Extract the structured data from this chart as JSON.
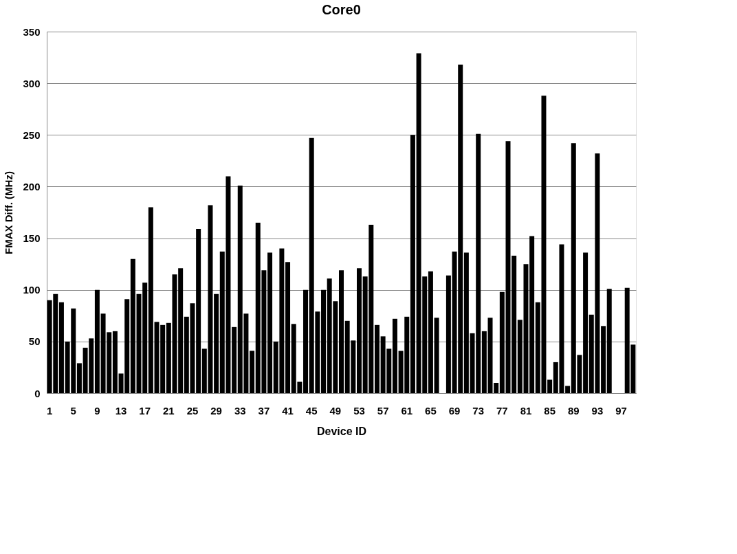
{
  "chart_data": {
    "type": "bar",
    "title": "Core0",
    "xlabel": "Device ID",
    "ylabel": "FMAX Diff. (MHz)",
    "categories": [
      "1",
      null,
      null,
      null,
      "5",
      null,
      null,
      null,
      "9",
      null,
      null,
      null,
      "13",
      null,
      null,
      null,
      "17",
      null,
      null,
      null,
      "21",
      null,
      null,
      null,
      "25",
      null,
      null,
      null,
      "29",
      null,
      null,
      null,
      "33",
      null,
      null,
      null,
      "37",
      null,
      null,
      null,
      "41",
      null,
      null,
      null,
      "45",
      null,
      null,
      null,
      "49",
      null,
      null,
      null,
      "53",
      null,
      null,
      null,
      "57",
      null,
      null,
      null,
      "61",
      null,
      null,
      null,
      "65",
      null,
      null,
      null,
      "69",
      null,
      null,
      null,
      "73",
      null,
      null,
      null,
      "77",
      null,
      null,
      null,
      "81",
      null,
      null,
      null,
      "85",
      null,
      null,
      null,
      "89",
      null,
      null,
      null,
      "93",
      null,
      null,
      null,
      "97",
      null,
      null
    ],
    "values": [
      90,
      96,
      88,
      50,
      82,
      29,
      44,
      53,
      100,
      77,
      59,
      60,
      19,
      91,
      130,
      96,
      107,
      180,
      69,
      66,
      68,
      115,
      121,
      74,
      87,
      159,
      43,
      182,
      96,
      137,
      210,
      64,
      201,
      77,
      41,
      165,
      119,
      136,
      50,
      140,
      127,
      67,
      11,
      100,
      247,
      79,
      100,
      111,
      89,
      119,
      70,
      51,
      121,
      113,
      163,
      66,
      55,
      43,
      72,
      41,
      74,
      250,
      329,
      113,
      118,
      73,
      null,
      114,
      137,
      318,
      136,
      58,
      251,
      60,
      73,
      10,
      98,
      244,
      133,
      71,
      125,
      152,
      88,
      288,
      13,
      30,
      144,
      7,
      242,
      37,
      136,
      76,
      232,
      65,
      101,
      null,
      null,
      102,
      47
    ],
    "color": "#000000",
    "ylim": [
      0,
      350
    ],
    "yticks": [
      0,
      50,
      100,
      150,
      200,
      250,
      300,
      350
    ],
    "grid": "y"
  }
}
